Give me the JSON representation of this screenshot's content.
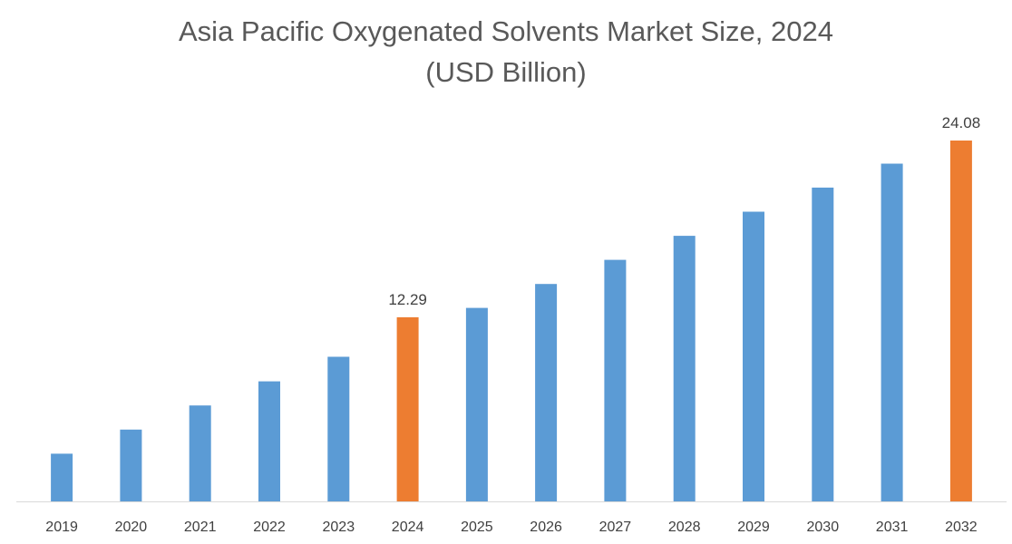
{
  "chart_data": {
    "type": "bar",
    "title": "Asia Pacific Oxygenated Solvents Market Size, 2024",
    "subtitle": "(USD Billion)",
    "xlabel": "",
    "ylabel": "",
    "categories": [
      "2019",
      "2020",
      "2021",
      "2022",
      "2023",
      "2024",
      "2025",
      "2026",
      "2027",
      "2028",
      "2029",
      "2030",
      "2031",
      "2032"
    ],
    "values": [
      3.18,
      4.79,
      6.4,
      8.01,
      9.65,
      12.29,
      12.91,
      14.51,
      16.12,
      17.72,
      19.33,
      20.94,
      22.54,
      24.08
    ],
    "highlight_color": "#ED7D31",
    "bar_color": "#5B9BD5",
    "highlighted": [
      "2024",
      "2032"
    ],
    "data_labels": [
      {
        "category": "2024",
        "text": "12.29"
      },
      {
        "category": "2032",
        "text": "24.08"
      }
    ],
    "ylim": [
      0,
      24.08
    ],
    "grid": false,
    "legend": "none"
  }
}
